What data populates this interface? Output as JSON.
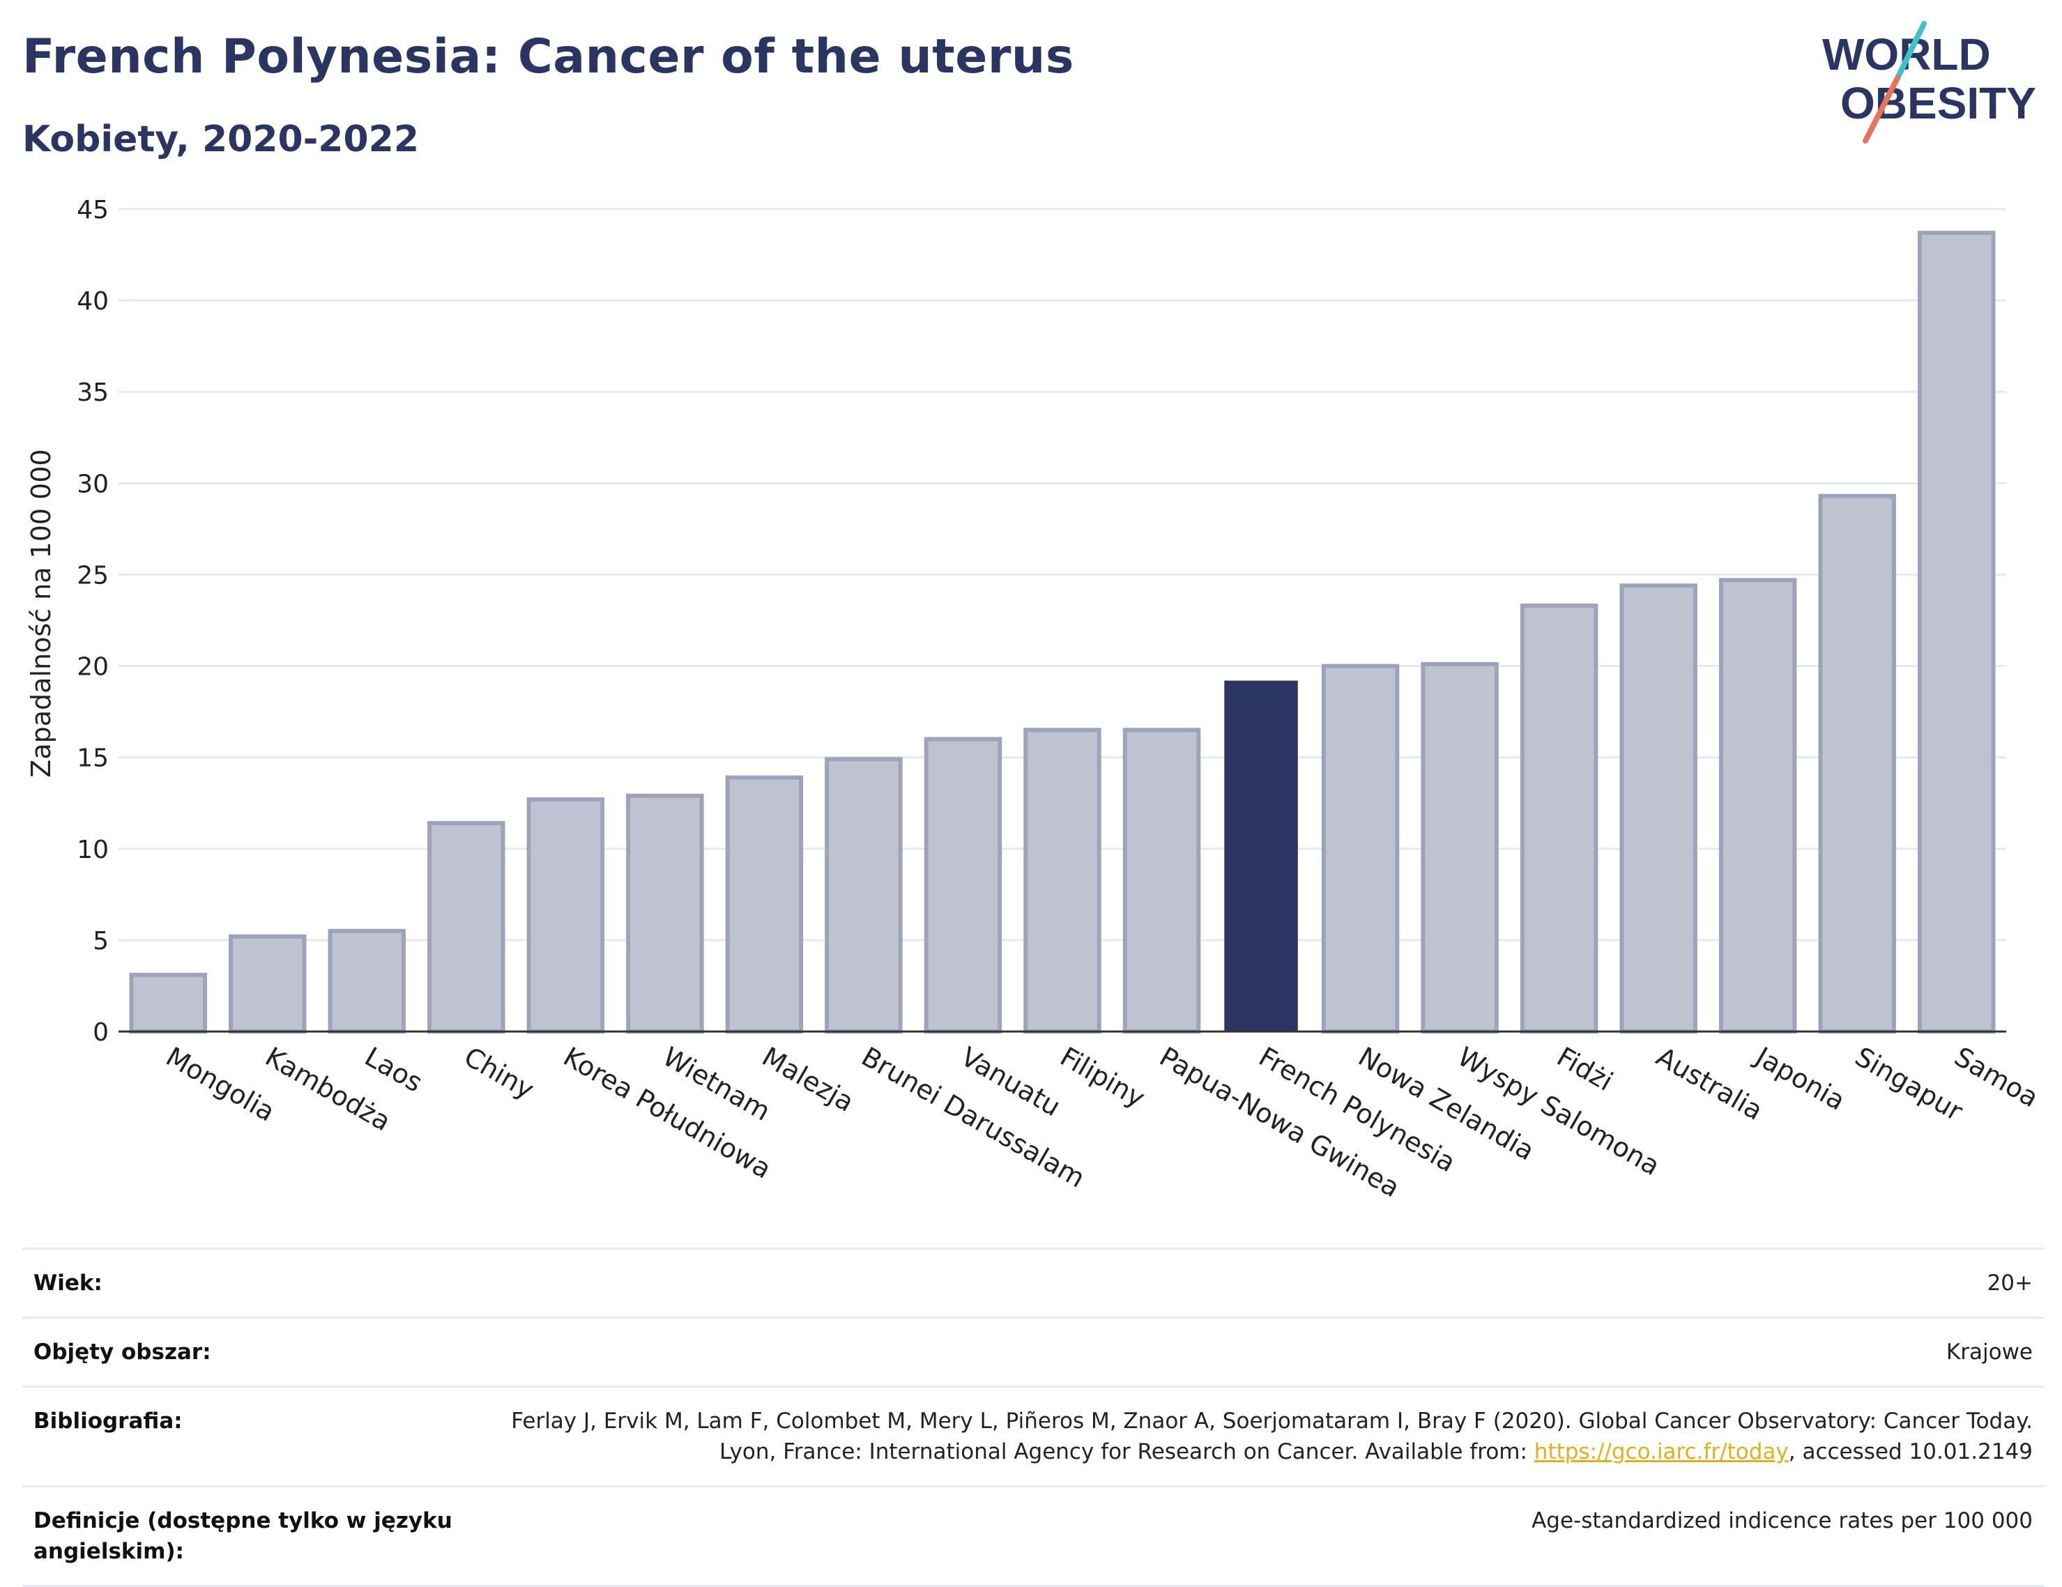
{
  "header": {
    "title": "French Polynesia: Cancer of the uterus",
    "subtitle": "Kobiety, 2020-2022"
  },
  "logo": {
    "line1": "WORLD",
    "line2": "OBESITY",
    "colors": {
      "text": "#2b3562",
      "slash_top": "#3ec1c8",
      "slash_bottom": "#e8735a"
    }
  },
  "colors": {
    "bar": "#bfc3d1",
    "bar_border": "#9ea3ba",
    "highlight": "#2b3562",
    "grid": "#e6e9ef",
    "axis": "#333333"
  },
  "chart_data": {
    "type": "bar",
    "title": "",
    "xlabel": "",
    "ylabel": "Zapadalność na 100 000",
    "ylim": [
      0,
      45
    ],
    "yticks": [
      0,
      5,
      10,
      15,
      20,
      25,
      30,
      35,
      40,
      45
    ],
    "grid": true,
    "highlight": "French Polynesia",
    "categories": [
      "Mongolia",
      "Kambodża",
      "Laos",
      "Chiny",
      "Korea Południowa",
      "Wietnam",
      "Malezja",
      "Brunei Darussalam",
      "Vanuatu",
      "Filipiny",
      "Papua-Nowa Gwinea",
      "French Polynesia",
      "Nowa Zelandia",
      "Wyspy Salomona",
      "Fidżi",
      "Australia",
      "Japonia",
      "Singapur",
      "Samoa"
    ],
    "values": [
      3.1,
      5.2,
      5.5,
      11.4,
      12.7,
      12.9,
      13.9,
      14.9,
      16.0,
      16.5,
      16.5,
      19.2,
      20.0,
      20.1,
      23.3,
      24.4,
      24.7,
      29.3,
      43.7
    ]
  },
  "info": [
    {
      "label": "Wiek:",
      "value": "20+"
    },
    {
      "label": "Objęty obszar:",
      "value": "Krajowe"
    },
    {
      "label": "Bibliografia:",
      "value_pre": "Ferlay J, Ervik M, Lam F, Colombet M, Mery L, Piñeros M, Znaor A, Soerjomataram I, Bray F (2020). Global Cancer Observatory: Cancer Today. Lyon, France: International Agency for Research on Cancer. Available from: ",
      "link": "https://gco.iarc.fr/today",
      "value_post": ", accessed 10.01.2149"
    },
    {
      "label": "Definicje (dostępne tylko w języku angielskim):",
      "value": "Age-standardized indicence rates per 100 000"
    }
  ]
}
